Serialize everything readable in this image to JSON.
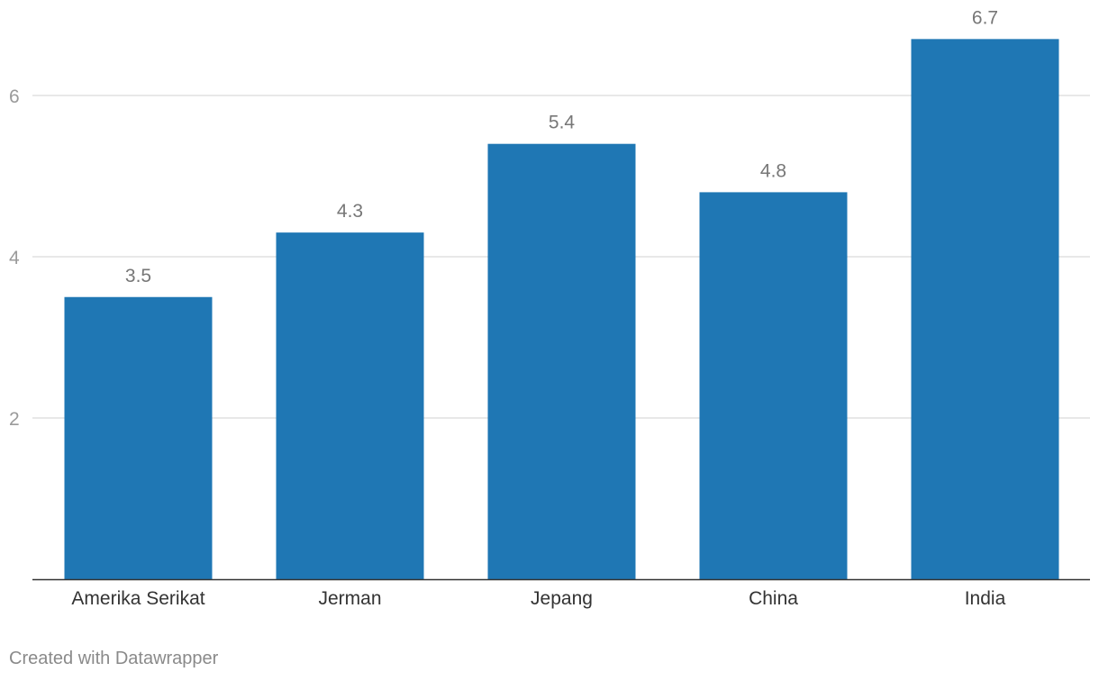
{
  "chart_data": {
    "type": "bar",
    "categories": [
      "Amerika Serikat",
      "Jerman",
      "Jepang",
      "China",
      "India"
    ],
    "values": [
      3.5,
      4.3,
      5.4,
      4.8,
      6.7
    ],
    "value_labels": [
      "3.5",
      "4.3",
      "5.4",
      "4.8",
      "6.7"
    ],
    "yticks": [
      2,
      4,
      6
    ],
    "ytick_labels": [
      "2",
      "4",
      "6"
    ],
    "ylim": [
      0,
      7.5
    ],
    "grid": true,
    "title": "",
    "xlabel": "",
    "ylabel": "",
    "bar_color": "#1f77b4"
  },
  "footer": {
    "credit": "Created with Datawrapper"
  }
}
